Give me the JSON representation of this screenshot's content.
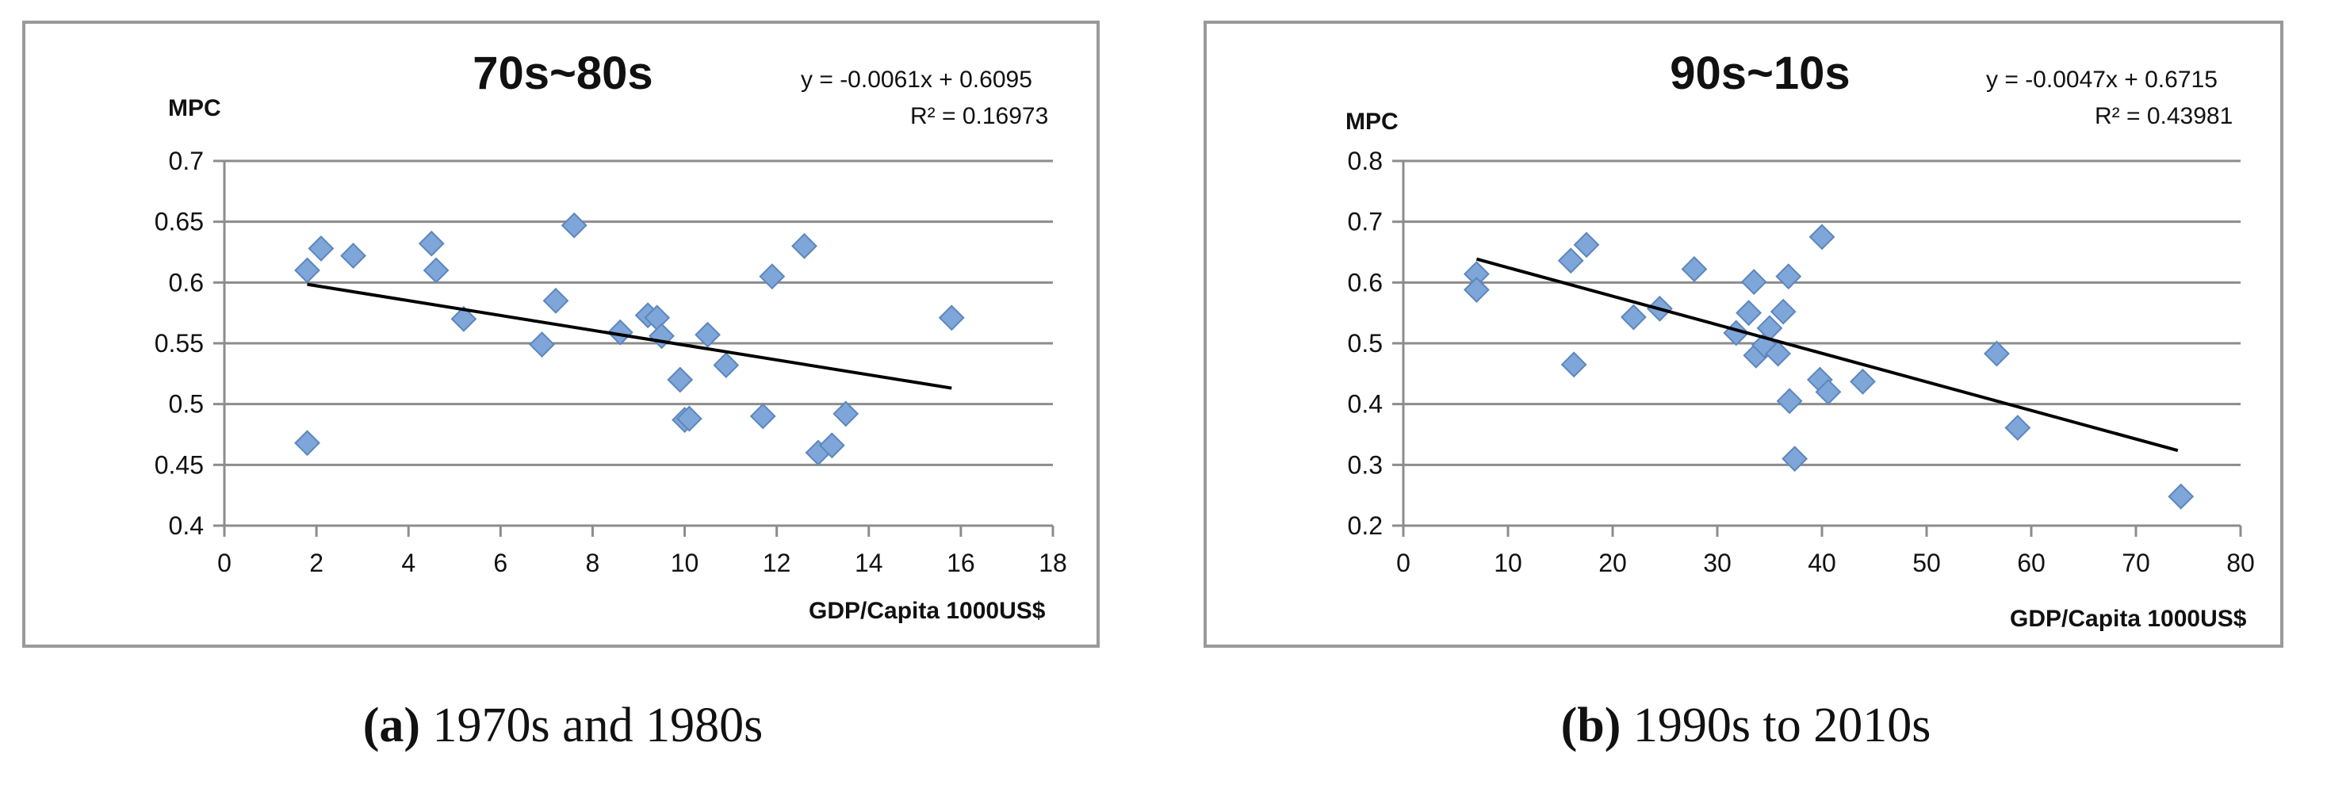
{
  "chart_data": [
    {
      "type": "scatter",
      "title": "70s~80s",
      "ylabel": "MPC",
      "xlabel": "GDP/Capita 1000US$",
      "equation": "y = -0.0061x + 0.6095",
      "r2": "R² = 0.16973",
      "xlim": [
        0,
        18
      ],
      "ylim": [
        0.4,
        0.7
      ],
      "xticks": [
        0,
        2,
        4,
        6,
        8,
        10,
        12,
        14,
        16,
        18
      ],
      "yticks": [
        0.4,
        0.45,
        0.5,
        0.55,
        0.6,
        0.65,
        0.7
      ],
      "xtick_labels": [
        "0",
        "2",
        "4",
        "6",
        "8",
        "10",
        "12",
        "14",
        "16",
        "18"
      ],
      "ytick_labels": [
        "0.4",
        "0.45",
        "0.5",
        "0.55",
        "0.6",
        "0.65",
        "0.7"
      ],
      "grid": true,
      "trendline": {
        "slope": -0.0061,
        "intercept": 0.6095,
        "x": [
          1.8,
          15.8
        ]
      },
      "marker_color": "#7EA6D8",
      "points": [
        [
          1.8,
          0.61
        ],
        [
          2.1,
          0.628
        ],
        [
          2.8,
          0.622
        ],
        [
          1.8,
          0.468
        ],
        [
          4.5,
          0.632
        ],
        [
          4.6,
          0.61
        ],
        [
          5.2,
          0.57
        ],
        [
          6.9,
          0.549
        ],
        [
          7.2,
          0.585
        ],
        [
          7.6,
          0.647
        ],
        [
          8.6,
          0.559
        ],
        [
          9.2,
          0.573
        ],
        [
          9.4,
          0.571
        ],
        [
          9.5,
          0.556
        ],
        [
          9.9,
          0.52
        ],
        [
          10.0,
          0.487
        ],
        [
          10.1,
          0.488
        ],
        [
          10.5,
          0.557
        ],
        [
          10.9,
          0.532
        ],
        [
          11.7,
          0.49
        ],
        [
          11.9,
          0.605
        ],
        [
          12.6,
          0.63
        ],
        [
          12.9,
          0.46
        ],
        [
          13.2,
          0.466
        ],
        [
          13.5,
          0.492
        ],
        [
          15.8,
          0.571
        ]
      ]
    },
    {
      "type": "scatter",
      "title": "90s~10s",
      "ylabel": "MPC",
      "xlabel": "GDP/Capita 1000US$",
      "equation": "y = -0.0047x + 0.6715",
      "r2": "R² = 0.43981",
      "xlim": [
        0,
        80
      ],
      "ylim": [
        0.2,
        0.8
      ],
      "xticks": [
        0,
        10,
        20,
        30,
        40,
        50,
        60,
        70,
        80
      ],
      "yticks": [
        0.2,
        0.3,
        0.4,
        0.5,
        0.6,
        0.7,
        0.8
      ],
      "xtick_labels": [
        "0",
        "10",
        "20",
        "30",
        "40",
        "50",
        "60",
        "70",
        "80"
      ],
      "ytick_labels": [
        "0.2",
        "0.3",
        "0.4",
        "0.5",
        "0.6",
        "0.7",
        "0.8"
      ],
      "grid": true,
      "trendline": {
        "slope": -0.0047,
        "intercept": 0.6715,
        "x": [
          7,
          74
        ]
      },
      "marker_color": "#7EA6D8",
      "points": [
        [
          7,
          0.614
        ],
        [
          7,
          0.588
        ],
        [
          16,
          0.636
        ],
        [
          17.5,
          0.662
        ],
        [
          16.3,
          0.465
        ],
        [
          22,
          0.543
        ],
        [
          24.5,
          0.557
        ],
        [
          27.8,
          0.622
        ],
        [
          31.8,
          0.517
        ],
        [
          33,
          0.55
        ],
        [
          33.5,
          0.601
        ],
        [
          33.7,
          0.48
        ],
        [
          34.5,
          0.497
        ],
        [
          35,
          0.525
        ],
        [
          35.8,
          0.483
        ],
        [
          36.3,
          0.552
        ],
        [
          36.8,
          0.61
        ],
        [
          36.9,
          0.405
        ],
        [
          37.4,
          0.31
        ],
        [
          40,
          0.675
        ],
        [
          39.8,
          0.44
        ],
        [
          40.6,
          0.42
        ],
        [
          43.9,
          0.437
        ],
        [
          56.7,
          0.483
        ],
        [
          58.7,
          0.361
        ],
        [
          74.3,
          0.248
        ]
      ]
    }
  ],
  "captions": [
    {
      "label": "(a)",
      "text": "1970s and 1980s"
    },
    {
      "label": "(b)",
      "text": "1990s to 2010s"
    }
  ]
}
